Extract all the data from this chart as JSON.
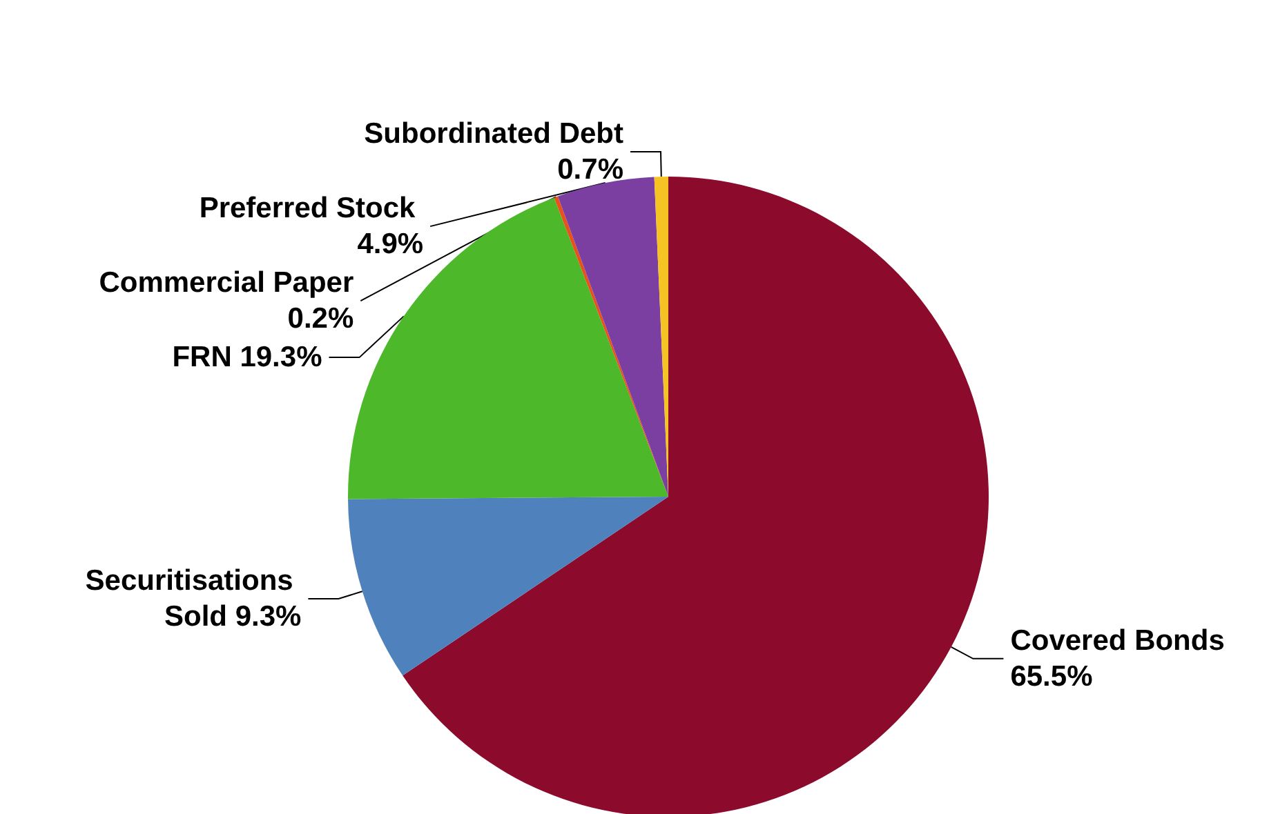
{
  "chart_data": {
    "type": "pie",
    "categories": [
      "Covered Bonds",
      "Securitisations Sold",
      "FRN",
      "Commercial Paper",
      "Preferred Stock",
      "Subordinated Debt"
    ],
    "values": [
      65.5,
      9.3,
      19.3,
      0.2,
      4.9,
      0.7
    ],
    "value_labels": [
      "65.5%",
      "9.3%",
      "19.3%",
      "0.2%",
      "4.9%",
      "0.7%"
    ],
    "colors": [
      "#8c0a2c",
      "#4f81bd",
      "#4cb82a",
      "#e8501c",
      "#7a3fa0",
      "#f5c324"
    ],
    "legend": false
  }
}
